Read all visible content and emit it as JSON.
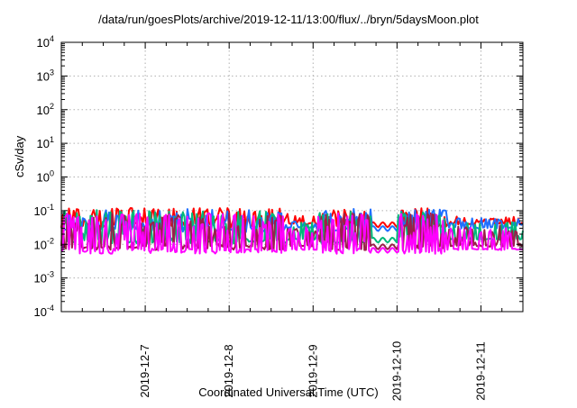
{
  "chart_data": {
    "type": "line",
    "title": "/data/run/goesPlots/archive/2019-12-11/13:00/flux/../bryn/5daysMoon.plot",
    "xlabel": "Coordinated Universal Time (UTC)",
    "ylabel": "cSv/day",
    "yscale": "log",
    "ylim": [
      0.0001,
      10000
    ],
    "y_ticks": [
      {
        "base": "10",
        "exp": "-4"
      },
      {
        "base": "10",
        "exp": "-3"
      },
      {
        "base": "10",
        "exp": "-2"
      },
      {
        "base": "10",
        "exp": "-1"
      },
      {
        "base": "10",
        "exp": "0"
      },
      {
        "base": "10",
        "exp": "1"
      },
      {
        "base": "10",
        "exp": "2"
      },
      {
        "base": "10",
        "exp": "3"
      },
      {
        "base": "10",
        "exp": "4"
      }
    ],
    "x_range_days": [
      0,
      5.5
    ],
    "x_ticks": [
      "2019-12-7",
      "2019-12-8",
      "2019-12-9",
      "2019-12-10",
      "2019-12-11"
    ],
    "x_tick_positions_days": [
      1,
      2,
      3,
      4,
      5
    ],
    "grid": true,
    "series": [
      {
        "color": "#ff0000",
        "base": 0.043,
        "spread": 0.03
      },
      {
        "color": "#1f6fff",
        "base": 0.033,
        "spread": 0.04
      },
      {
        "color": "#00b87a",
        "base": 0.015,
        "spread": 0.1
      },
      {
        "color": "#9a1f4a",
        "base": 0.0095,
        "spread": 0.13
      },
      {
        "color": "#ff00ff",
        "base": 0.0075,
        "spread": 0.17
      }
    ]
  }
}
